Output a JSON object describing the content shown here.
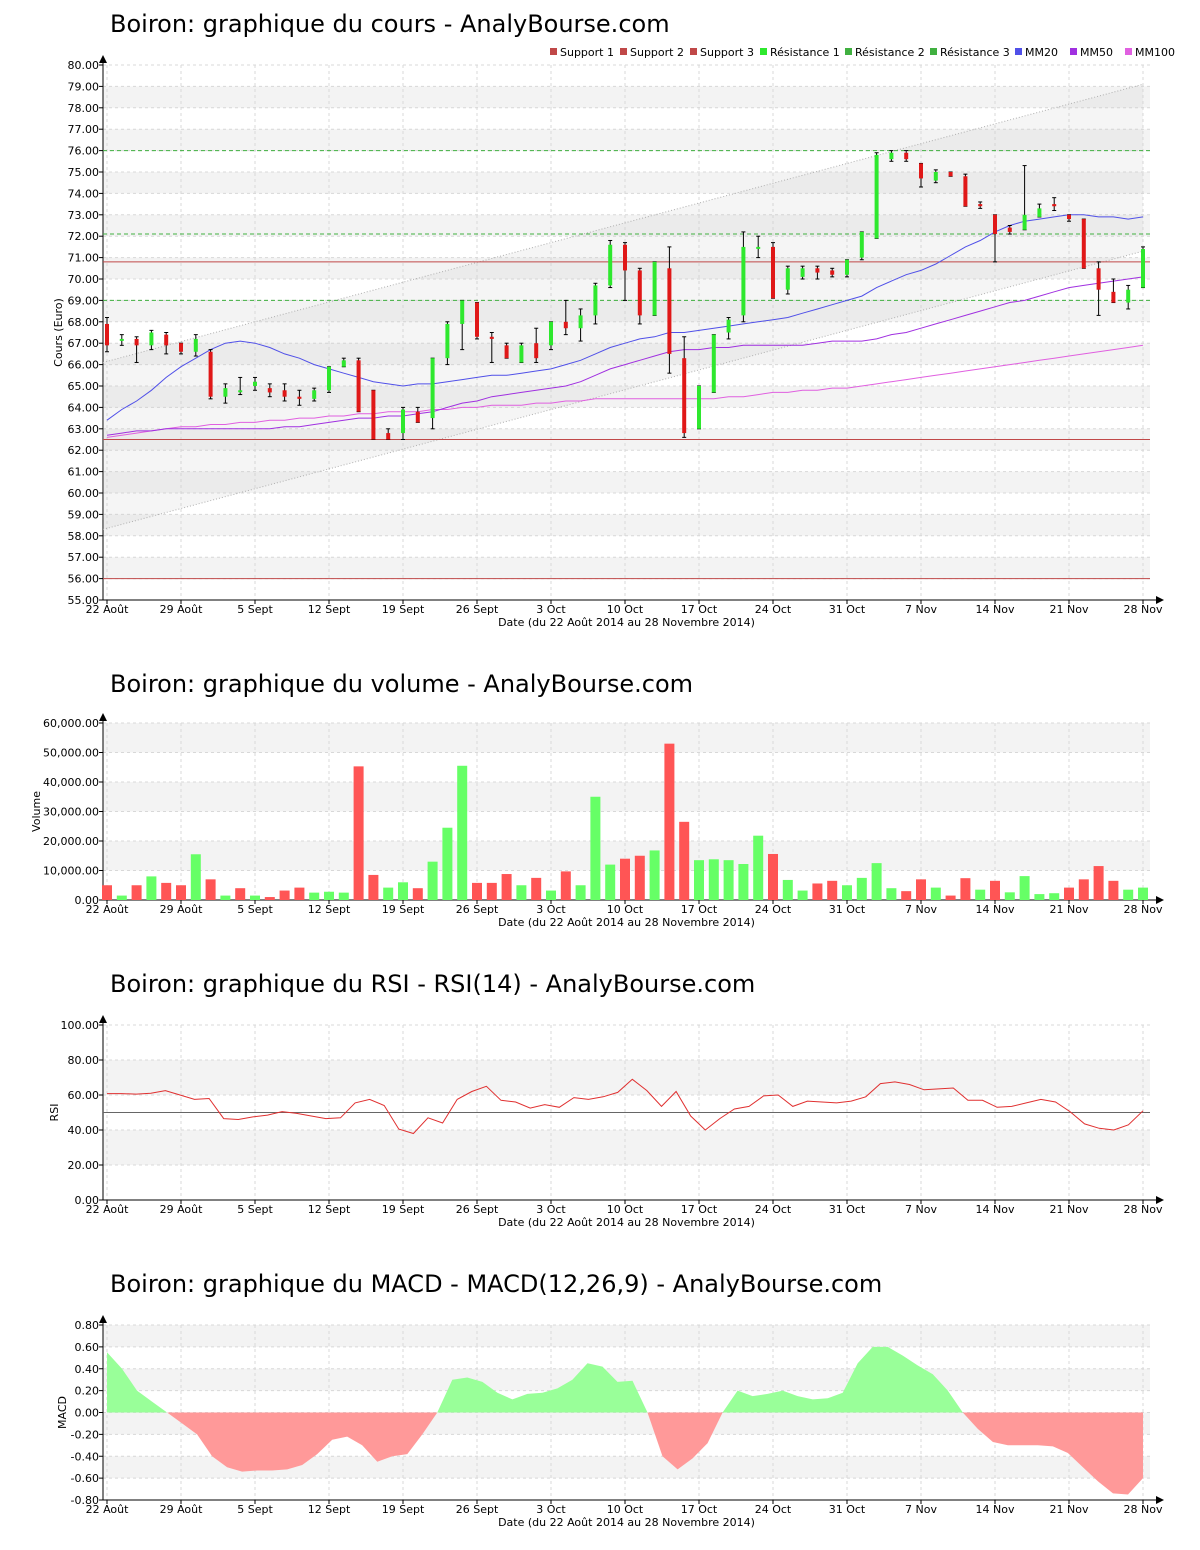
{
  "colors": {
    "up": "#2ee82e",
    "down": "#e01818",
    "mm20": "#5050e8",
    "mm50": "#a030e0",
    "mm100": "#e060e0",
    "support": "#c04848",
    "resistance": "#40b040",
    "band_alt": "#f3f3f3",
    "grid": "#d8d8d8",
    "vol_up": "#66ff66",
    "vol_down": "#ff5555",
    "rsi_line": "#e03030",
    "macd_pos": "#99ff99",
    "macd_neg": "#ff9999"
  },
  "x_labels": [
    "22 Août",
    "29 Août",
    "5 Sept",
    "12 Sept",
    "19 Sept",
    "26 Sept",
    "3 Oct",
    "10 Oct",
    "17 Oct",
    "24 Oct",
    "31 Oct",
    "7 Nov",
    "14 Nov",
    "21 Nov",
    "28 Nov"
  ],
  "x_axis_title": "Date (du 22 Août 2014 au 28 Novembre 2014)",
  "price": {
    "title": "Boiron: graphique du cours - AnalyBourse.com",
    "ylabel": "Cours (Euro)",
    "legend": [
      "Support 1",
      "Support 2",
      "Support 3",
      "Résistance 1",
      "Résistance 2",
      "Résistance 3",
      "MM20",
      "MM50",
      "MM100"
    ],
    "ylim": [
      55,
      80
    ],
    "yticks": [
      "55.00",
      "56.00",
      "57.00",
      "58.00",
      "59.00",
      "60.00",
      "61.00",
      "62.00",
      "63.00",
      "64.00",
      "65.00",
      "66.00",
      "67.00",
      "68.00",
      "69.00",
      "70.00",
      "71.00",
      "72.00",
      "73.00",
      "74.00",
      "75.00",
      "76.00",
      "77.00",
      "78.00",
      "79.00",
      "80.00"
    ],
    "supports": [
      62.5,
      56.0,
      70.8
    ],
    "resistances": [
      76.0,
      72.1,
      69.0
    ],
    "candles": [
      [
        67.9,
        68.2,
        66.6,
        66.9
      ],
      [
        67.2,
        67.4,
        66.9,
        67.2
      ],
      [
        67.2,
        67.3,
        66.1,
        66.9
      ],
      [
        66.9,
        67.6,
        66.7,
        67.5
      ],
      [
        67.4,
        67.5,
        66.5,
        66.9
      ],
      [
        67.0,
        67.0,
        66.5,
        66.6
      ],
      [
        66.6,
        67.4,
        66.4,
        67.2
      ],
      [
        66.6,
        66.7,
        64.4,
        64.5
      ],
      [
        64.5,
        65.1,
        64.2,
        64.9
      ],
      [
        64.8,
        65.4,
        64.6,
        64.8
      ],
      [
        65.0,
        65.4,
        64.8,
        65.2
      ],
      [
        64.9,
        65.1,
        64.5,
        64.7
      ],
      [
        64.8,
        65.1,
        64.3,
        64.5
      ],
      [
        64.5,
        64.8,
        64.1,
        64.4
      ],
      [
        64.4,
        64.9,
        64.3,
        64.8
      ],
      [
        64.8,
        65.9,
        64.7,
        65.9
      ],
      [
        65.9,
        66.3,
        65.9,
        66.2
      ],
      [
        66.2,
        66.3,
        63.8,
        63.8
      ],
      [
        64.8,
        64.8,
        62.5,
        62.5
      ],
      [
        62.8,
        63.0,
        62.5,
        62.5
      ],
      [
        62.8,
        64.0,
        62.5,
        63.9
      ],
      [
        63.8,
        64.0,
        63.3,
        63.3
      ],
      [
        63.5,
        66.3,
        63.0,
        66.3
      ],
      [
        66.3,
        68.0,
        66.0,
        67.9
      ],
      [
        67.9,
        69.0,
        66.7,
        69.0
      ],
      [
        68.9,
        68.9,
        67.2,
        67.3
      ],
      [
        67.3,
        67.5,
        66.1,
        67.2
      ],
      [
        66.9,
        67.0,
        66.3,
        66.3
      ],
      [
        66.1,
        67.0,
        66.1,
        66.9
      ],
      [
        67.0,
        67.7,
        66.1,
        66.3
      ],
      [
        66.9,
        68.0,
        66.7,
        68.0
      ],
      [
        68.0,
        69.0,
        67.4,
        67.7
      ],
      [
        67.7,
        68.6,
        67.1,
        68.3
      ],
      [
        68.3,
        69.8,
        67.9,
        69.7
      ],
      [
        69.7,
        71.8,
        69.6,
        71.6
      ],
      [
        71.6,
        71.7,
        69.0,
        70.4
      ],
      [
        70.4,
        70.5,
        67.9,
        68.3
      ],
      [
        68.3,
        70.8,
        68.3,
        70.8
      ],
      [
        70.5,
        71.5,
        65.6,
        66.5
      ],
      [
        66.3,
        67.3,
        62.6,
        62.8
      ],
      [
        63.0,
        65.0,
        63.0,
        65.0
      ],
      [
        64.7,
        67.4,
        64.7,
        67.4
      ],
      [
        67.5,
        68.2,
        67.2,
        68.1
      ],
      [
        68.3,
        72.2,
        68.0,
        71.5
      ],
      [
        71.5,
        72.0,
        71.0,
        71.5
      ],
      [
        71.5,
        71.7,
        69.1,
        69.1
      ],
      [
        69.5,
        70.6,
        69.3,
        70.5
      ],
      [
        70.1,
        70.6,
        70.0,
        70.5
      ],
      [
        70.5,
        70.6,
        70.0,
        70.3
      ],
      [
        70.4,
        70.5,
        70.1,
        70.2
      ],
      [
        70.2,
        70.9,
        70.1,
        70.9
      ],
      [
        71.0,
        72.2,
        70.9,
        72.2
      ],
      [
        71.9,
        75.9,
        71.9,
        75.8
      ],
      [
        75.6,
        76.0,
        75.5,
        75.9
      ],
      [
        75.9,
        76.0,
        75.5,
        75.6
      ],
      [
        75.4,
        75.4,
        74.3,
        74.7
      ],
      [
        74.6,
        75.1,
        74.5,
        75.0
      ],
      [
        75.0,
        75.0,
        74.8,
        74.8
      ],
      [
        74.8,
        74.9,
        73.4,
        73.4
      ],
      [
        73.5,
        73.6,
        73.3,
        73.4
      ],
      [
        73.0,
        73.0,
        70.8,
        72.1
      ],
      [
        72.4,
        72.5,
        72.1,
        72.2
      ],
      [
        72.3,
        75.3,
        72.3,
        73.0
      ],
      [
        72.9,
        73.5,
        72.9,
        73.3
      ],
      [
        73.5,
        73.8,
        73.2,
        73.4
      ],
      [
        73.0,
        73.0,
        72.7,
        72.8
      ],
      [
        72.8,
        72.8,
        70.5,
        70.5
      ],
      [
        70.5,
        70.8,
        68.3,
        69.5
      ],
      [
        69.4,
        70.0,
        68.9,
        68.9
      ],
      [
        68.9,
        69.7,
        68.6,
        69.5
      ],
      [
        69.6,
        71.5,
        69.6,
        71.4
      ]
    ],
    "mm20": [
      63.4,
      63.9,
      64.3,
      64.8,
      65.4,
      65.9,
      66.3,
      66.7,
      67.0,
      67.1,
      67.0,
      66.8,
      66.5,
      66.3,
      66.0,
      65.8,
      65.6,
      65.4,
      65.2,
      65.1,
      65.0,
      65.1,
      65.1,
      65.2,
      65.3,
      65.4,
      65.5,
      65.5,
      65.6,
      65.7,
      65.8,
      66.0,
      66.2,
      66.5,
      66.8,
      67.0,
      67.2,
      67.3,
      67.5,
      67.5,
      67.6,
      67.7,
      67.8,
      67.9,
      68.0,
      68.1,
      68.2,
      68.4,
      68.6,
      68.8,
      69.0,
      69.2,
      69.6,
      69.9,
      70.2,
      70.4,
      70.7,
      71.1,
      71.5,
      71.8,
      72.2,
      72.5,
      72.7,
      72.8,
      72.9,
      73.0,
      73.0,
      72.9,
      72.9,
      72.8,
      72.9
    ],
    "mm50": [
      62.7,
      62.8,
      62.9,
      62.9,
      63.0,
      63.0,
      63.0,
      63.0,
      63.0,
      63.0,
      63.0,
      63.0,
      63.1,
      63.1,
      63.2,
      63.3,
      63.4,
      63.5,
      63.5,
      63.6,
      63.6,
      63.7,
      63.8,
      64.0,
      64.2,
      64.3,
      64.5,
      64.6,
      64.7,
      64.8,
      64.9,
      65.0,
      65.2,
      65.5,
      65.8,
      66.0,
      66.2,
      66.4,
      66.6,
      66.7,
      66.7,
      66.8,
      66.8,
      66.9,
      66.9,
      66.9,
      66.9,
      66.9,
      67.0,
      67.1,
      67.1,
      67.1,
      67.2,
      67.4,
      67.5,
      67.7,
      67.9,
      68.1,
      68.3,
      68.5,
      68.7,
      68.9,
      69.0,
      69.2,
      69.4,
      69.6,
      69.7,
      69.8,
      69.9,
      70.0,
      70.1
    ],
    "mm100": [
      62.6,
      62.7,
      62.8,
      62.9,
      63.0,
      63.1,
      63.1,
      63.2,
      63.2,
      63.3,
      63.3,
      63.4,
      63.4,
      63.5,
      63.5,
      63.6,
      63.6,
      63.7,
      63.7,
      63.8,
      63.8,
      63.8,
      63.9,
      63.9,
      64.0,
      64.0,
      64.1,
      64.1,
      64.1,
      64.2,
      64.2,
      64.3,
      64.3,
      64.4,
      64.4,
      64.4,
      64.4,
      64.4,
      64.4,
      64.4,
      64.4,
      64.4,
      64.5,
      64.5,
      64.6,
      64.7,
      64.7,
      64.8,
      64.8,
      64.9,
      64.9,
      65.0,
      65.1,
      65.2,
      65.3,
      65.4,
      65.5,
      65.6,
      65.7,
      65.8,
      65.9,
      66.0,
      66.1,
      66.2,
      66.3,
      66.4,
      66.5,
      66.6,
      66.7,
      66.8,
      66.9
    ],
    "channel_upper": [
      66.1,
      79.1
    ],
    "channel_lower": [
      58.3,
      71.3
    ]
  },
  "volume": {
    "title": "Boiron: graphique du volume - AnalyBourse.com",
    "ylabel": "Volume",
    "ylim": [
      0,
      60000
    ],
    "yticks": [
      "0.00",
      "10,000.00",
      "20,000.00",
      "30,000.00",
      "40,000.00",
      "50,000.00",
      "60,000.00"
    ],
    "values": [
      5000,
      1500,
      5000,
      8000,
      5800,
      5000,
      15500,
      7000,
      1500,
      4000,
      1500,
      1000,
      3200,
      4200,
      2500,
      2800,
      2500,
      45300,
      8500,
      4200,
      6000,
      4000,
      13000,
      24500,
      45500,
      5800,
      5800,
      8800,
      5000,
      7500,
      3200,
      9700,
      5000,
      35000,
      12000,
      14000,
      15000,
      16800,
      53000,
      26500,
      13500,
      13800,
      13500,
      12200,
      21800,
      15600,
      6800,
      3200,
      5600,
      6500,
      5000,
      7500,
      12500,
      4000,
      3000,
      7000,
      4200,
      1500,
      7400,
      3500,
      6500,
      2600,
      8100,
      2000,
      2300,
      4200,
      7000,
      11500,
      6500,
      3500,
      4200
    ]
  },
  "rsi": {
    "title": "Boiron: graphique du RSI - RSI(14) - AnalyBourse.com",
    "ylabel": "RSI",
    "ylim": [
      0,
      100
    ],
    "yticks": [
      "0.00",
      "20.00",
      "40.00",
      "60.00",
      "80.00",
      "100.00"
    ],
    "ref_line": 50,
    "values": [
      60.8,
      60.8,
      60.5,
      61.0,
      62.5,
      60.0,
      57.5,
      58.0,
      46.5,
      46.0,
      47.5,
      48.5,
      50.5,
      49.5,
      48.0,
      46.5,
      47.0,
      55.5,
      57.5,
      54.0,
      40.5,
      38.0,
      47.0,
      44.0,
      57.5,
      62.0,
      65.0,
      57.0,
      56.0,
      52.5,
      54.5,
      53.0,
      58.5,
      57.5,
      59.0,
      61.5,
      69.0,
      62.5,
      53.5,
      62.0,
      48.0,
      40.0,
      46.5,
      52.0,
      53.5,
      59.5,
      60.0,
      53.5,
      56.5,
      56.0,
      55.5,
      56.5,
      59.0,
      66.5,
      67.5,
      66.0,
      63.0,
      63.5,
      64.0,
      57.0,
      57.0,
      53.0,
      53.5,
      55.5,
      57.5,
      56.0,
      50.5,
      43.5,
      41.0,
      40.0,
      43.0,
      51.0
    ]
  },
  "macd": {
    "title": "Boiron: graphique du MACD - MACD(12,26,9) - AnalyBourse.com",
    "ylabel": "MACD",
    "ylim": [
      -0.8,
      0.8
    ],
    "yticks": [
      "-0.80",
      "-0.60",
      "-0.40",
      "-0.20",
      "0.00",
      "0.20",
      "0.40",
      "0.60",
      "0.80"
    ],
    "values": [
      0.55,
      0.4,
      0.2,
      0.1,
      0.0,
      -0.1,
      -0.2,
      -0.4,
      -0.5,
      -0.54,
      -0.53,
      -0.53,
      -0.52,
      -0.48,
      -0.38,
      -0.25,
      -0.22,
      -0.3,
      -0.45,
      -0.4,
      -0.38,
      -0.2,
      0.0,
      0.3,
      0.32,
      0.28,
      0.18,
      0.12,
      0.17,
      0.18,
      0.22,
      0.3,
      0.45,
      0.42,
      0.28,
      0.29,
      0.0,
      -0.4,
      -0.52,
      -0.42,
      -0.28,
      0.0,
      0.2,
      0.15,
      0.17,
      0.2,
      0.15,
      0.12,
      0.13,
      0.18,
      0.45,
      0.6,
      0.6,
      0.52,
      0.43,
      0.35,
      0.2,
      0.0,
      -0.15,
      -0.27,
      -0.3,
      -0.3,
      -0.3,
      -0.31,
      -0.37,
      -0.5,
      -0.63,
      -0.74,
      -0.75,
      -0.6
    ]
  }
}
